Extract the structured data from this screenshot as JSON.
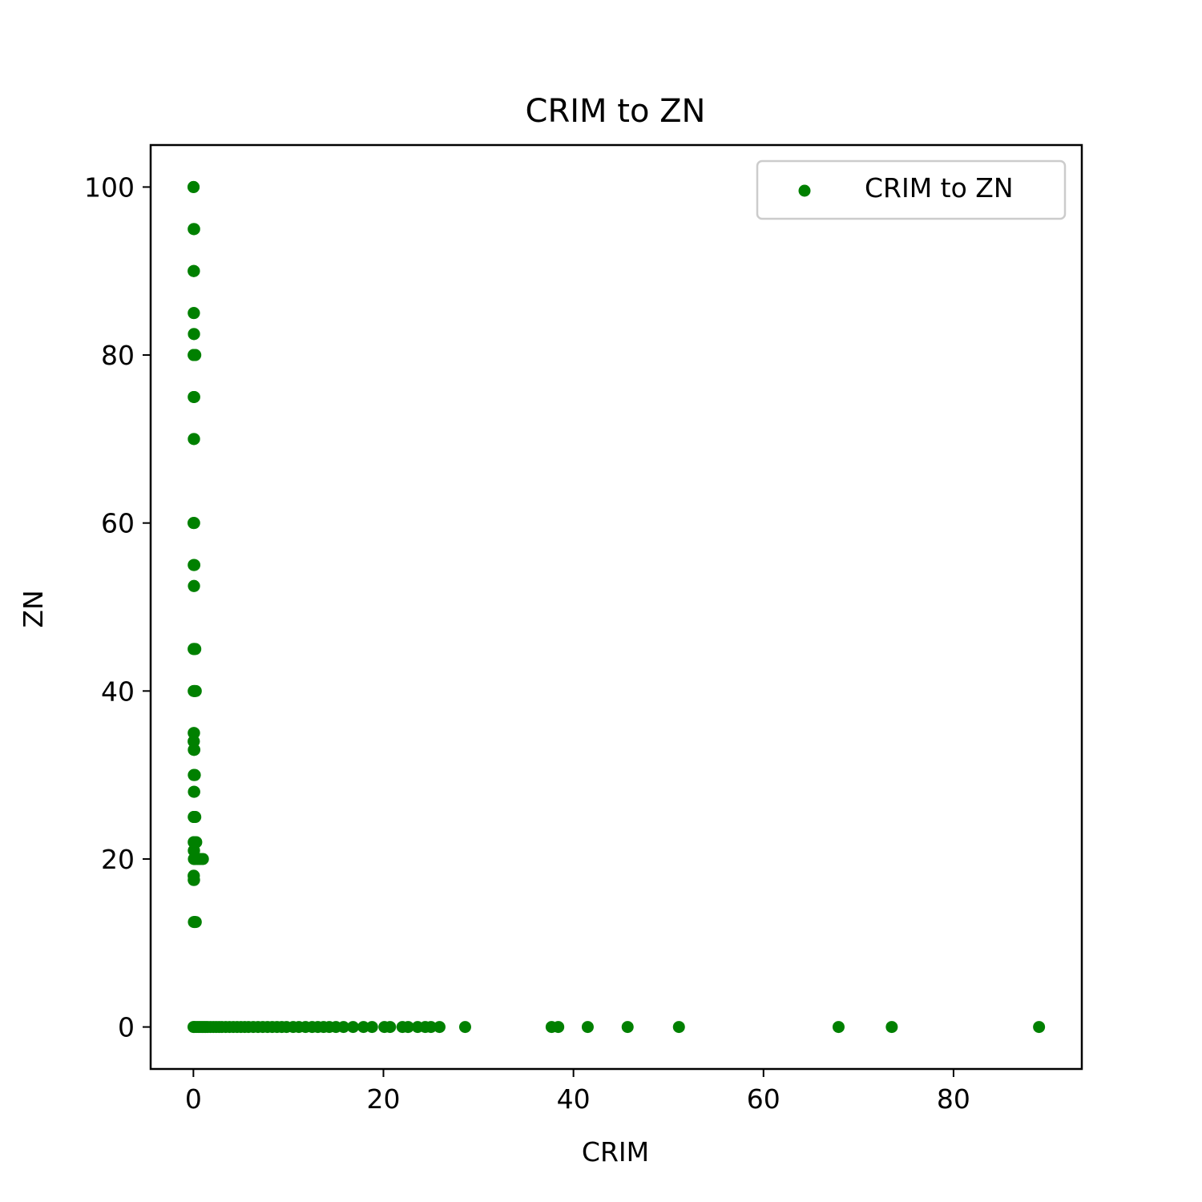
{
  "chart_data": {
    "type": "scatter",
    "title": "CRIM to ZN",
    "xlabel": "CRIM",
    "ylabel": "ZN",
    "xlim": [
      -4.5,
      93.5
    ],
    "ylim": [
      -5,
      105
    ],
    "xticks": [
      0,
      20,
      40,
      60,
      80
    ],
    "yticks": [
      0,
      20,
      40,
      60,
      80,
      100
    ],
    "grid": false,
    "legend": {
      "position": "upper right",
      "entries": [
        "CRIM to ZN"
      ]
    },
    "series": [
      {
        "name": "CRIM to ZN",
        "color": "#008000",
        "points": [
          [
            0.01,
            100
          ],
          [
            0.02,
            100
          ],
          [
            0.03,
            95
          ],
          [
            0.05,
            95
          ],
          [
            0.08,
            95
          ],
          [
            0.02,
            90
          ],
          [
            0.04,
            90
          ],
          [
            0.06,
            90
          ],
          [
            0.03,
            85
          ],
          [
            0.06,
            85
          ],
          [
            0.05,
            82.5
          ],
          [
            0.07,
            82.5
          ],
          [
            0.02,
            80
          ],
          [
            0.05,
            80
          ],
          [
            0.1,
            80
          ],
          [
            0.15,
            80
          ],
          [
            0.2,
            80
          ],
          [
            0.03,
            75
          ],
          [
            0.06,
            75
          ],
          [
            0.09,
            75
          ],
          [
            0.04,
            70
          ],
          [
            0.07,
            70
          ],
          [
            0.01,
            60
          ],
          [
            0.04,
            60
          ],
          [
            0.08,
            60
          ],
          [
            0.03,
            55
          ],
          [
            0.06,
            55
          ],
          [
            0.1,
            55
          ],
          [
            0.05,
            52.5
          ],
          [
            0.07,
            52.5
          ],
          [
            0.02,
            45
          ],
          [
            0.06,
            45
          ],
          [
            0.1,
            45
          ],
          [
            0.2,
            45
          ],
          [
            0.03,
            40
          ],
          [
            0.08,
            40
          ],
          [
            0.15,
            40
          ],
          [
            0.25,
            40
          ],
          [
            0.03,
            35
          ],
          [
            0.07,
            35
          ],
          [
            0.02,
            34
          ],
          [
            0.05,
            34
          ],
          [
            0.04,
            33
          ],
          [
            0.07,
            33
          ],
          [
            0.1,
            33
          ],
          [
            0.04,
            30
          ],
          [
            0.08,
            30
          ],
          [
            0.15,
            30
          ],
          [
            0.05,
            28
          ],
          [
            0.09,
            28
          ],
          [
            0.03,
            25
          ],
          [
            0.06,
            25
          ],
          [
            0.12,
            25
          ],
          [
            0.2,
            25
          ],
          [
            0.03,
            22
          ],
          [
            0.08,
            22
          ],
          [
            0.15,
            22
          ],
          [
            0.3,
            22
          ],
          [
            0.04,
            21
          ],
          [
            0.07,
            21
          ],
          [
            0.05,
            20
          ],
          [
            0.1,
            20
          ],
          [
            0.2,
            20
          ],
          [
            0.4,
            20
          ],
          [
            0.6,
            20
          ],
          [
            0.8,
            20
          ],
          [
            1.0,
            20
          ],
          [
            0.02,
            18
          ],
          [
            0.05,
            18
          ],
          [
            0.03,
            17.5
          ],
          [
            0.07,
            17.5
          ],
          [
            0.05,
            12.5
          ],
          [
            0.1,
            12.5
          ],
          [
            0.15,
            12.5
          ],
          [
            0.25,
            12.5
          ],
          [
            0.01,
            0
          ],
          [
            0.1,
            0
          ],
          [
            0.3,
            0
          ],
          [
            0.5,
            0
          ],
          [
            0.7,
            0
          ],
          [
            0.9,
            0
          ],
          [
            1.1,
            0
          ],
          [
            1.3,
            0
          ],
          [
            1.5,
            0
          ],
          [
            1.8,
            0
          ],
          [
            2.1,
            0
          ],
          [
            2.4,
            0
          ],
          [
            2.7,
            0
          ],
          [
            3.0,
            0
          ],
          [
            3.4,
            0
          ],
          [
            3.8,
            0
          ],
          [
            4.2,
            0
          ],
          [
            4.6,
            0
          ],
          [
            5.0,
            0
          ],
          [
            5.4,
            0
          ],
          [
            5.8,
            0
          ],
          [
            6.3,
            0
          ],
          [
            6.8,
            0
          ],
          [
            7.3,
            0
          ],
          [
            7.8,
            0
          ],
          [
            8.3,
            0
          ],
          [
            8.8,
            0
          ],
          [
            9.3,
            0
          ],
          [
            9.8,
            0
          ],
          [
            10.5,
            0
          ],
          [
            11.1,
            0
          ],
          [
            11.8,
            0
          ],
          [
            12.5,
            0
          ],
          [
            13.1,
            0
          ],
          [
            13.7,
            0
          ],
          [
            14.3,
            0
          ],
          [
            15.0,
            0
          ],
          [
            15.8,
            0
          ],
          [
            16.8,
            0
          ],
          [
            17.9,
            0
          ],
          [
            18.8,
            0
          ],
          [
            20.1,
            0
          ],
          [
            20.7,
            0
          ],
          [
            22.0,
            0
          ],
          [
            22.6,
            0
          ],
          [
            23.6,
            0
          ],
          [
            24.4,
            0
          ],
          [
            25.0,
            0
          ],
          [
            25.9,
            0
          ],
          [
            28.6,
            0
          ],
          [
            37.7,
            0
          ],
          [
            38.4,
            0
          ],
          [
            41.5,
            0
          ],
          [
            45.7,
            0
          ],
          [
            51.1,
            0
          ],
          [
            67.9,
            0
          ],
          [
            73.5,
            0
          ],
          [
            89.0,
            0
          ]
        ]
      }
    ]
  }
}
